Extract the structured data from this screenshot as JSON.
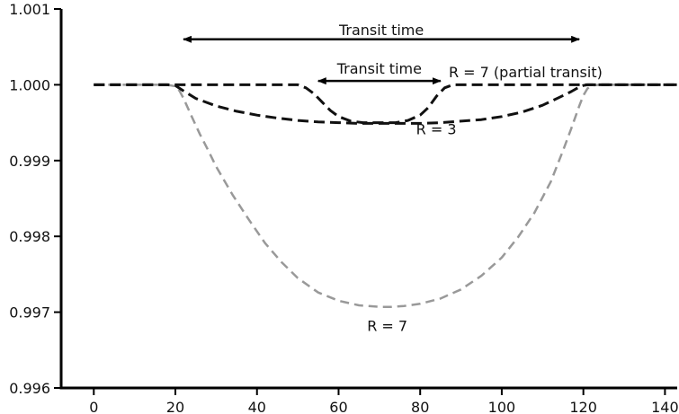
{
  "chart_data": {
    "type": "line",
    "title": "",
    "xlabel": "",
    "ylabel": "",
    "xlim": [
      -8,
      143
    ],
    "ylim": [
      0.996,
      1.001
    ],
    "xticks": [
      0,
      20,
      40,
      60,
      80,
      100,
      120,
      140
    ],
    "xtick_labels": [
      "0",
      "20",
      "40",
      "60",
      "80",
      "100",
      "120",
      "140"
    ],
    "yticks": [
      1.001,
      1.0,
      0.999,
      0.998,
      0.997,
      0.996
    ],
    "ytick_labels": [
      "1.001",
      "1.000",
      "0.999",
      "0.998",
      "0.997",
      "0.996"
    ],
    "grid": false,
    "legend": "none",
    "series": [
      {
        "color": "#999999",
        "dash": "dashed",
        "x": [
          0,
          18,
          20,
          21,
          22,
          24,
          26,
          28,
          30,
          34,
          38,
          42,
          46,
          50,
          55,
          60,
          65,
          70,
          73,
          76,
          80,
          85,
          90,
          95,
          100,
          104,
          108,
          112,
          115,
          117,
          119,
          120,
          121,
          122,
          124,
          130,
          140,
          143
        ],
        "y": [
          1.0,
          1.0,
          0.99998,
          0.99992,
          0.99982,
          0.99958,
          0.99935,
          0.99914,
          0.99892,
          0.99855,
          0.99822,
          0.99791,
          0.99766,
          0.99745,
          0.99726,
          0.99715,
          0.99709,
          0.99707,
          0.99707,
          0.99708,
          0.99711,
          0.99718,
          0.9973,
          0.99748,
          0.99772,
          0.99799,
          0.99831,
          0.99872,
          0.99913,
          0.99942,
          0.99972,
          0.99986,
          0.99995,
          0.99999,
          1.0,
          1.0,
          1.0,
          1.0
        ]
      },
      {
        "color": "#111111",
        "dash": "dashed",
        "x": [
          0,
          18,
          20,
          22,
          25,
          30,
          35,
          40,
          45,
          50,
          55,
          60,
          65,
          70,
          75,
          80,
          85,
          90,
          95,
          100,
          105,
          110,
          114,
          117,
          119,
          120,
          121,
          122,
          125,
          130,
          140,
          143
        ],
        "y": [
          1.0,
          1.0,
          0.99999,
          0.99992,
          0.99982,
          0.99972,
          0.99965,
          0.9996,
          0.99956,
          0.99953,
          0.99951,
          0.9995,
          0.99949,
          0.99949,
          0.99949,
          0.99949,
          0.9995,
          0.99952,
          0.99954,
          0.99958,
          0.99964,
          0.99973,
          0.99983,
          0.99991,
          0.99997,
          0.99999,
          1.0,
          1.0,
          1.0,
          1.0,
          1.0,
          1.0
        ]
      },
      {
        "color": "#111111",
        "dash": "dashed",
        "x": [
          0,
          50,
          52,
          54,
          56,
          58,
          60,
          63,
          66,
          70,
          74,
          77,
          80,
          82,
          84,
          86,
          88,
          90,
          100,
          120,
          130,
          143
        ],
        "y": [
          1.0,
          1.0,
          0.99996,
          0.99988,
          0.99977,
          0.99966,
          0.99958,
          0.99952,
          0.9995,
          0.9995,
          0.9995,
          0.99953,
          0.9996,
          0.9997,
          0.99985,
          0.99996,
          1.0,
          1.0,
          1.0,
          1.0,
          1.0,
          1.0
        ]
      }
    ],
    "annotations": [
      {
        "text": "Transit time",
        "arrow_from": 22,
        "arrow_to": 119,
        "at": 1.0006
      },
      {
        "text": "Transit time",
        "arrow_from": 55,
        "arrow_to": 85,
        "at": 1.00005
      },
      {
        "text": "R = 7 (partial transit)",
        "x": 87,
        "y": 1.0001
      },
      {
        "text": "R = 3",
        "x": 79,
        "y": 0.99935
      },
      {
        "text": "R = 7",
        "x": 67,
        "y": 0.99675
      }
    ]
  }
}
